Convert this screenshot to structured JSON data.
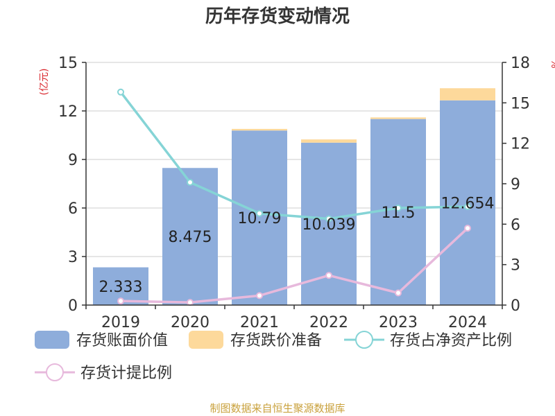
{
  "chart_data": {
    "type": "bar",
    "title": "历年存货变动情况",
    "categories": [
      "2019",
      "2020",
      "2021",
      "2022",
      "2023",
      "2024"
    ],
    "left_axis": {
      "unit": "(亿元)",
      "ylim": [
        0,
        15
      ],
      "ticks": [
        "0",
        "3",
        "6",
        "9",
        "12",
        "15"
      ]
    },
    "right_axis": {
      "unit": "%",
      "ylim": [
        0,
        18
      ],
      "ticks": [
        "0",
        "3",
        "6",
        "9",
        "12",
        "15",
        "18"
      ]
    },
    "series": [
      {
        "name": "存货账面价值",
        "type": "bar",
        "stack": "inventory",
        "axis": "left",
        "values": [
          2.333,
          8.475,
          10.79,
          10.039,
          11.5,
          12.654
        ]
      },
      {
        "name": "存货跌价准备",
        "type": "bar",
        "stack": "inventory",
        "axis": "left",
        "values": [
          0.0,
          0.0,
          0.1,
          0.2,
          0.1,
          0.75
        ]
      },
      {
        "name": "存货占净资产比例",
        "type": "line",
        "axis": "right",
        "values": [
          15.8,
          9.1,
          6.8,
          6.4,
          7.2,
          7.3
        ]
      },
      {
        "name": "存货计提比例",
        "type": "line",
        "axis": "right",
        "values": [
          0.3,
          0.2,
          0.7,
          2.2,
          0.9,
          5.7
        ]
      }
    ],
    "data_labels": [
      "2.333",
      "8.475",
      "10.79",
      "10.039",
      "11.5",
      "12.654"
    ],
    "colors": {
      "bar_main": "#8eaddb",
      "bar_reserve": "#fdd99b",
      "line_ratio": "#85d4d6",
      "line_provision": "#e7b9dc",
      "axis_unit": "#d9262c",
      "source_text": "#c9a13c"
    },
    "grid": true,
    "legend_position": "bottom"
  },
  "source": "制图数据来自恒生聚源数据库"
}
